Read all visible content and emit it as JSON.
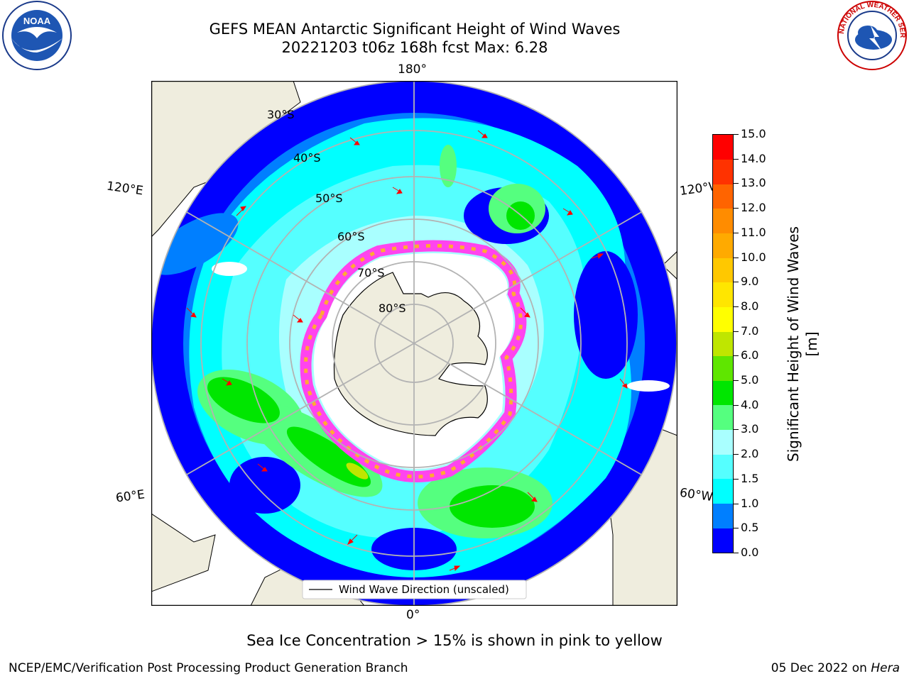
{
  "title": {
    "line1": "GEFS MEAN Antarctic Significant Height of Wind Waves",
    "line2": "20221203 t06z 168h fcst   Max: 6.28"
  },
  "map": {
    "projection": "south-polar-stereographic",
    "longitude_labels": {
      "top": "180°",
      "bottom": "0°",
      "upper_left": "120°E",
      "lower_left": "60°E",
      "upper_right": "120°W",
      "lower_right": "60°W"
    },
    "latitude_labels": [
      "30°S",
      "40°S",
      "50°S",
      "60°S",
      "70°S",
      "80°S"
    ],
    "legend": "Wind Wave Direction (unscaled)",
    "colors": {
      "land": "#efedde",
      "ocean_low": "#0000ff",
      "ocean_mid": "#00e5ff",
      "wave_high": "#00e000",
      "ice_pink": "#ff44ee",
      "ice_yellow": "#ffaa33",
      "arrow": "#ff0000",
      "grid": "#b3b3b3"
    }
  },
  "colorbar": {
    "label": "Significant Height of Wind Waves [m]",
    "ticks": [
      "0.0",
      "0.5",
      "1.0",
      "1.5",
      "2.0",
      "3.0",
      "4.0",
      "5.0",
      "6.0",
      "7.0",
      "8.0",
      "9.0",
      "10.0",
      "11.0",
      "12.0",
      "13.0",
      "14.0",
      "15.0"
    ],
    "colors": [
      "#0000ff",
      "#007fff",
      "#00ffff",
      "#55ffff",
      "#a9ffff",
      "#55ff7f",
      "#00e600",
      "#5fe600",
      "#bfe600",
      "#ffff00",
      "#ffe600",
      "#ffc800",
      "#ffaa00",
      "#ff8c00",
      "#ff6400",
      "#ff3200",
      "#ff0000"
    ]
  },
  "footnote": "Sea Ice Concentration > 15% is shown in pink to yellow",
  "credit": "NCEP/EMC/Verification Post Processing Product Generation Branch",
  "date": {
    "prefix": "05 Dec 2022 on ",
    "machine": "Hera"
  },
  "logos": {
    "left": "NOAA",
    "right": "NATIONAL WEATHER SERVICE"
  }
}
